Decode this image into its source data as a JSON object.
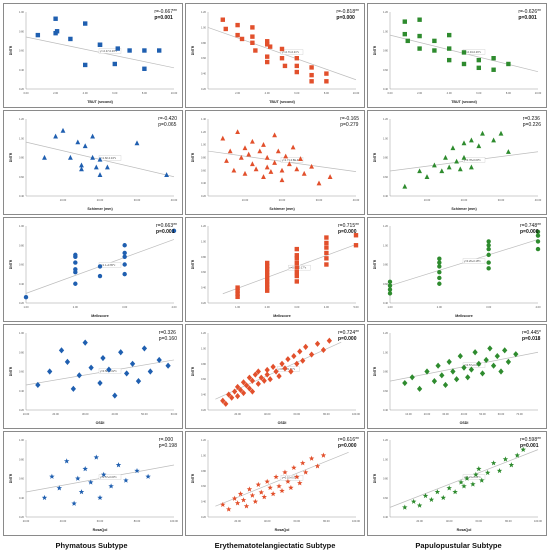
{
  "colors": {
    "phymatous": "#1f5fb0",
    "erythematotelangiectatic": "#e2502c",
    "papulopustular": "#2e8b2e",
    "trendline": "#bdbdbd"
  },
  "columns": [
    "Phymatous Subtype",
    "Erythematotelangiectatic Subtype",
    "Papulopustular Subtype"
  ],
  "chart_data": [
    {
      "type": "scatter",
      "row": 0,
      "col": 0,
      "marker": "square",
      "ylabel": "DNTR",
      "xlabel": "TBUT (second)",
      "r": "r=-0.667**",
      "p": "p=0.001",
      "eq": "y=-0.47-0.29*x",
      "xlim": [
        0,
        10
      ],
      "ylim": [
        0.2,
        1.0
      ],
      "xticks": [
        "0.00",
        "2.00",
        "4.00",
        "6.00",
        "8.00",
        "10.00"
      ],
      "yticks": [
        "0.20",
        "0.40",
        "0.60",
        "0.80",
        "1.00"
      ],
      "x": [
        0.8,
        2.0,
        2.0,
        2.1,
        3.0,
        4.0,
        4.0,
        5.0,
        5.0,
        6.0,
        6.2,
        7.0,
        8.0,
        8.0,
        9.0
      ],
      "y": [
        0.76,
        0.93,
        0.78,
        0.8,
        0.72,
        0.88,
        0.45,
        0.66,
        0.66,
        0.46,
        0.62,
        0.6,
        0.41,
        0.6,
        0.6
      ],
      "trend": [
        [
          0,
          0.74
        ],
        [
          10,
          0.42
        ]
      ]
    },
    {
      "type": "scatter",
      "row": 0,
      "col": 1,
      "marker": "square",
      "ylabel": "DNTR",
      "xlabel": "TBUT (second)",
      "r": "r=-0.818**",
      "p": "p=0.000",
      "eq": "y=-0.71-0.21*x",
      "xlim": [
        0,
        10
      ],
      "ylim": [
        0.2,
        1.2
      ],
      "xticks": [
        "2.00",
        "4.00",
        "6.00",
        "8.00",
        "10.00"
      ],
      "yticks": [
        "0.20",
        "0.40",
        "0.60",
        "0.80",
        "1.00",
        "1.20"
      ],
      "x": [
        1.0,
        1.2,
        2.0,
        2.0,
        2.3,
        3.0,
        3.0,
        3.0,
        3.2,
        4.0,
        4.0,
        4.0,
        4.0,
        4.2,
        5.0,
        5.0,
        5.2,
        6.0,
        6.0,
        6.0,
        7.0,
        7.0,
        7.0,
        8.0,
        8.0
      ],
      "y": [
        1.1,
        0.98,
        1.03,
        0.9,
        0.85,
        1.0,
        0.88,
        0.8,
        0.7,
        0.82,
        0.78,
        0.62,
        0.55,
        0.75,
        0.72,
        0.6,
        0.5,
        0.6,
        0.5,
        0.42,
        0.48,
        0.38,
        0.3,
        0.4,
        0.3
      ],
      "trend": [
        [
          0,
          1.0
        ],
        [
          10,
          0.32
        ]
      ]
    },
    {
      "type": "scatter",
      "row": 0,
      "col": 2,
      "marker": "square",
      "ylabel": "DNTR",
      "xlabel": "TBUT (second)",
      "r": "r=-0.626**",
      "p": "p=0.001",
      "eq": "y=-0.34-0.26*x",
      "xlim": [
        0,
        10
      ],
      "ylim": [
        0.4,
        1.2
      ],
      "xticks": [
        "0.00",
        "2.00",
        "4.00",
        "6.00",
        "8.00",
        "10.00"
      ],
      "yticks": [
        "0.40",
        "0.60",
        "0.80",
        "1.00",
        "1.20"
      ],
      "x": [
        1.0,
        1.0,
        1.2,
        2.0,
        2.0,
        2.0,
        3.0,
        3.0,
        4.0,
        4.0,
        4.0,
        5.0,
        5.0,
        6.0,
        6.0,
        7.0,
        7.0,
        8.0
      ],
      "y": [
        1.1,
        0.97,
        0.9,
        1.12,
        0.95,
        0.82,
        0.9,
        0.8,
        0.96,
        0.82,
        0.7,
        0.78,
        0.66,
        0.7,
        0.62,
        0.72,
        0.6,
        0.66
      ],
      "trend": [
        [
          0,
          0.96
        ],
        [
          10,
          0.58
        ]
      ]
    },
    {
      "type": "scatter",
      "row": 1,
      "col": 0,
      "marker": "triangle",
      "ylabel": "DNTR",
      "xlabel": "Schirmer (mm)",
      "r": "r=-0.420",
      "p": "p=0.065",
      "eq": "y=1.82-0.34*x",
      "xlim": [
        0,
        40
      ],
      "ylim": [
        0.4,
        1.2
      ],
      "xticks": [
        "10.00",
        "20.00",
        "30.00",
        "40.00"
      ],
      "yticks": [
        "0.40",
        "0.60",
        "0.80",
        "1.00",
        "1.20"
      ],
      "x": [
        5,
        8,
        10,
        12,
        14,
        15,
        15,
        16,
        18,
        18,
        19,
        20,
        20,
        22,
        30,
        38
      ],
      "y": [
        0.8,
        1.02,
        1.08,
        0.8,
        0.96,
        0.72,
        0.68,
        0.92,
        1.02,
        0.8,
        0.7,
        0.78,
        0.62,
        0.7,
        0.95,
        0.62
      ],
      "trend": [
        [
          0,
          0.96
        ],
        [
          40,
          0.6
        ]
      ]
    },
    {
      "type": "scatter",
      "row": 1,
      "col": 1,
      "marker": "triangle",
      "ylabel": "DNTR",
      "xlabel": "Schirmer (mm)",
      "r": "r=-0.165",
      "p": "p=0.279",
      "eq": "y=1.71-0.8E-4*x",
      "xlim": [
        0,
        40
      ],
      "ylim": [
        0.2,
        1.4
      ],
      "xticks": [
        "10.00",
        "20.00",
        "30.00",
        "40.00"
      ],
      "yticks": [
        "0.20",
        "0.40",
        "0.60",
        "0.80",
        "1.00",
        "1.20",
        "1.40"
      ],
      "x": [
        4,
        5,
        6,
        7,
        8,
        9,
        10,
        10,
        11,
        12,
        12,
        13,
        14,
        15,
        15,
        16,
        16,
        17,
        18,
        18,
        19,
        20,
        20,
        21,
        22,
        23,
        24,
        25,
        26,
        28,
        30,
        33
      ],
      "y": [
        1.1,
        0.75,
        0.9,
        0.6,
        1.2,
        0.8,
        0.95,
        0.55,
        0.85,
        1.05,
        0.7,
        0.62,
        0.9,
        1.0,
        0.5,
        0.8,
        0.65,
        0.58,
        1.15,
        0.72,
        0.9,
        0.6,
        0.45,
        0.82,
        0.7,
        0.96,
        0.62,
        0.78,
        0.55,
        0.66,
        0.4,
        0.5
      ],
      "trend": [
        [
          0,
          0.9
        ],
        [
          40,
          0.58
        ]
      ]
    },
    {
      "type": "scatter",
      "row": 1,
      "col": 2,
      "marker": "triangle",
      "ylabel": "DNTR",
      "xlabel": "Schirmer (mm)",
      "r": "r=0.236",
      "p": "p=0.226",
      "eq": "y=0.78+0.00*x",
      "xlim": [
        0,
        40
      ],
      "ylim": [
        0.4,
        1.2
      ],
      "xticks": [
        "10.00",
        "20.00",
        "30.00",
        "40.00"
      ],
      "yticks": [
        "0.40",
        "0.60",
        "0.80",
        "1.00",
        "1.20"
      ],
      "x": [
        4,
        8,
        10,
        12,
        14,
        15,
        16,
        17,
        18,
        19,
        20,
        20,
        22,
        22,
        24,
        25,
        28,
        30,
        32
      ],
      "y": [
        0.5,
        0.66,
        0.6,
        0.72,
        0.66,
        0.8,
        0.7,
        0.9,
        0.76,
        0.68,
        0.95,
        0.8,
        0.98,
        0.7,
        0.92,
        1.05,
        0.98,
        1.05,
        0.86
      ],
      "trend": [
        [
          0,
          0.66
        ],
        [
          40,
          0.86
        ]
      ]
    },
    {
      "type": "scatter",
      "row": 2,
      "col": 0,
      "marker": "circle",
      "ylabel": "DNTR",
      "xlabel": "Melkscore",
      "r": "r=0.663**",
      "p": "p=0.001",
      "eq": "y=1.1+0.65*x",
      "xlim": [
        1,
        4
      ],
      "ylim": [
        0.2,
        1.0
      ],
      "xticks": [
        "1.00",
        "2.00",
        "3.00",
        "4.00"
      ],
      "yticks": [
        "0.20",
        "0.40",
        "0.60",
        "0.80",
        "1.00"
      ],
      "x": [
        1.0,
        2.0,
        2.0,
        2.0,
        2.0,
        2.0,
        2.0,
        2.5,
        2.5,
        3.0,
        3.0,
        3.0,
        3.0,
        3.0,
        4.0
      ],
      "y": [
        0.26,
        0.4,
        0.52,
        0.55,
        0.62,
        0.68,
        0.7,
        0.48,
        0.58,
        0.5,
        0.6,
        0.68,
        0.72,
        0.8,
        0.95
      ],
      "trend": [
        [
          1,
          0.3
        ],
        [
          4,
          0.86
        ]
      ]
    },
    {
      "type": "scatter",
      "row": 2,
      "col": 1,
      "marker": "square",
      "ylabel": "DNTR",
      "xlabel": "Melkscore",
      "r": "r=0.715**",
      "p": "p=0.000",
      "eq": "y=0.43+0.17*x",
      "xlim": [
        0,
        5
      ],
      "ylim": [
        0.2,
        1.2
      ],
      "xticks": [
        "1.00",
        "2.00",
        "3.00",
        "4.00",
        "5.00"
      ],
      "yticks": [
        "0.20",
        "0.40",
        "0.60",
        "0.80",
        "1.00",
        "1.20"
      ],
      "x": [
        1,
        1,
        1,
        1,
        2,
        2,
        2,
        2,
        2,
        2,
        2,
        2,
        2,
        2,
        3,
        3,
        3,
        3,
        3,
        3,
        3,
        3,
        4,
        4,
        4,
        4,
        4,
        4,
        5,
        5
      ],
      "y": [
        0.28,
        0.32,
        0.36,
        0.4,
        0.36,
        0.4,
        0.44,
        0.48,
        0.52,
        0.56,
        0.6,
        0.64,
        0.68,
        0.72,
        0.48,
        0.55,
        0.6,
        0.66,
        0.72,
        0.78,
        0.82,
        0.9,
        0.7,
        0.78,
        0.85,
        0.92,
        0.98,
        1.05,
        0.95,
        1.08
      ],
      "trend": [
        [
          0.5,
          0.32
        ],
        [
          5,
          0.96
        ]
      ]
    },
    {
      "type": "scatter",
      "row": 2,
      "col": 2,
      "marker": "circle",
      "ylabel": "DNTR",
      "xlabel": "Melkscore",
      "r": "r=0.748**",
      "p": "p=0.000",
      "eq": "y=0.26+0.18*x",
      "xlim": [
        1,
        4
      ],
      "ylim": [
        0.4,
        1.2
      ],
      "xticks": [
        "1.00",
        "2.00",
        "3.00",
        "4.00"
      ],
      "yticks": [
        "0.40",
        "0.60",
        "0.80",
        "1.00",
        "1.20"
      ],
      "x": [
        1,
        1,
        1,
        1,
        2,
        2,
        2,
        2,
        2,
        2,
        3,
        3,
        3,
        3,
        3,
        3,
        4,
        4,
        4,
        4
      ],
      "y": [
        0.5,
        0.54,
        0.58,
        0.62,
        0.6,
        0.66,
        0.72,
        0.78,
        0.82,
        0.86,
        0.76,
        0.82,
        0.9,
        0.96,
        1.0,
        1.04,
        0.96,
        1.04,
        1.1,
        1.14
      ],
      "trend": [
        [
          1,
          0.58
        ],
        [
          4,
          1.06
        ]
      ]
    },
    {
      "type": "scatter",
      "row": 3,
      "col": 0,
      "marker": "diamond",
      "ylabel": "DNTR",
      "xlabel": "OSDI",
      "r": "r=0.326",
      "p": "p=0.160",
      "eq": "y=0.58+0.02*x",
      "xlim": [
        10,
        60
      ],
      "ylim": [
        0.2,
        1.0
      ],
      "xticks": [
        "10.00",
        "20.00",
        "30.00",
        "40.00",
        "50.00",
        "60.00"
      ],
      "yticks": [
        "0.20",
        "0.40",
        "0.60",
        "0.80",
        "1.00"
      ],
      "x": [
        14,
        18,
        22,
        24,
        26,
        28,
        30,
        32,
        35,
        36,
        38,
        40,
        42,
        44,
        46,
        48,
        50,
        52,
        55,
        58
      ],
      "y": [
        0.46,
        0.6,
        0.82,
        0.7,
        0.42,
        0.56,
        0.9,
        0.64,
        0.48,
        0.74,
        0.62,
        0.35,
        0.8,
        0.58,
        0.68,
        0.5,
        0.84,
        0.6,
        0.72,
        0.66
      ],
      "trend": [
        [
          10,
          0.46
        ],
        [
          60,
          0.72
        ]
      ]
    },
    {
      "type": "scatter",
      "row": 3,
      "col": 1,
      "marker": "diamond",
      "ylabel": "DNTR",
      "xlabel": "OSDI",
      "r": "r=0.724**",
      "p": "p=0.000",
      "eq": "y=0.15+0.01*x",
      "xlim": [
        0,
        100
      ],
      "ylim": [
        0.2,
        1.2
      ],
      "xticks": [
        "20.00",
        "40.00",
        "60.00",
        "80.00",
        "100.00"
      ],
      "yticks": [
        "0.20",
        "0.40",
        "0.60",
        "0.80",
        "1.00",
        "1.20"
      ],
      "x": [
        10,
        12,
        14,
        16,
        18,
        20,
        20,
        22,
        24,
        24,
        26,
        28,
        28,
        30,
        30,
        32,
        34,
        34,
        36,
        38,
        40,
        40,
        42,
        44,
        46,
        48,
        50,
        52,
        54,
        56,
        58,
        60,
        62,
        64,
        66,
        70,
        74,
        78,
        82
      ],
      "y": [
        0.32,
        0.28,
        0.4,
        0.36,
        0.44,
        0.38,
        0.5,
        0.46,
        0.42,
        0.56,
        0.52,
        0.48,
        0.62,
        0.58,
        0.44,
        0.66,
        0.54,
        0.7,
        0.62,
        0.58,
        0.72,
        0.66,
        0.6,
        0.76,
        0.7,
        0.64,
        0.8,
        0.74,
        0.86,
        0.7,
        0.9,
        0.8,
        0.96,
        0.84,
        1.02,
        0.92,
        1.06,
        0.98,
        1.1
      ],
      "trend": [
        [
          5,
          0.34
        ],
        [
          90,
          1.08
        ]
      ]
    },
    {
      "type": "scatter",
      "row": 3,
      "col": 2,
      "marker": "diamond",
      "ylabel": "DNTR",
      "xlabel": "OSDI",
      "r": "r=0.445*",
      "p": "p=0.018",
      "eq": "y=0.57+0.01*x",
      "xlim": [
        0,
        80
      ],
      "ylim": [
        0.4,
        1.2
      ],
      "xticks": [
        "10.00",
        "20.00",
        "30.00",
        "40.00",
        "50.00",
        "60.00",
        "70.00"
      ],
      "yticks": [
        "0.40",
        "0.60",
        "0.80",
        "1.00",
        "1.20"
      ],
      "x": [
        8,
        12,
        16,
        20,
        24,
        26,
        28,
        30,
        32,
        34,
        36,
        38,
        40,
        42,
        44,
        46,
        48,
        50,
        52,
        54,
        56,
        58,
        60,
        62,
        64,
        68
      ],
      "y": [
        0.68,
        0.74,
        0.62,
        0.8,
        0.7,
        0.86,
        0.76,
        0.66,
        0.9,
        0.8,
        0.72,
        0.96,
        0.84,
        0.74,
        0.82,
        1.0,
        0.88,
        0.78,
        0.92,
        1.04,
        0.86,
        0.96,
        0.8,
        1.02,
        0.9,
        0.98
      ],
      "trend": [
        [
          0,
          0.7
        ],
        [
          80,
          1.0
        ]
      ]
    },
    {
      "type": "scatter",
      "row": 4,
      "col": 0,
      "marker": "star",
      "ylabel": "DNTR",
      "xlabel": "RosaQol",
      "r": "r=.000",
      "p": "p=0.198",
      "eq": "y=0.57+0.00*x",
      "xlim": [
        20,
        100
      ],
      "ylim": [
        0.2,
        1.0
      ],
      "xticks": [
        "20.00",
        "40.00",
        "60.00",
        "80.00",
        "100.00"
      ],
      "yticks": [
        "0.20",
        "0.40",
        "0.60",
        "0.80",
        "1.00"
      ],
      "x": [
        30,
        34,
        38,
        42,
        46,
        48,
        50,
        52,
        55,
        58,
        60,
        62,
        66,
        70,
        74,
        80,
        86
      ],
      "y": [
        0.4,
        0.62,
        0.5,
        0.78,
        0.34,
        0.6,
        0.46,
        0.7,
        0.56,
        0.82,
        0.4,
        0.64,
        0.52,
        0.74,
        0.58,
        0.68,
        0.62
      ],
      "trend": [
        [
          20,
          0.46
        ],
        [
          100,
          0.74
        ]
      ]
    },
    {
      "type": "scatter",
      "row": 4,
      "col": 1,
      "marker": "star",
      "ylabel": "DNTR",
      "xlabel": "RosaQol",
      "r": "r=0.616**",
      "p": "p=0.000",
      "eq": "y=0.10+0.01*x",
      "xlim": [
        0,
        100
      ],
      "ylim": [
        0.2,
        1.2
      ],
      "xticks": [
        "20.00",
        "40.00",
        "60.00",
        "80.00",
        "100.00"
      ],
      "yticks": [
        "0.20",
        "0.40",
        "0.60",
        "0.80",
        "1.00",
        "1.20"
      ],
      "x": [
        10,
        14,
        18,
        20,
        22,
        24,
        26,
        28,
        30,
        32,
        34,
        36,
        38,
        40,
        42,
        44,
        46,
        48,
        50,
        52,
        54,
        56,
        58,
        60,
        62,
        64,
        66,
        70,
        74,
        78
      ],
      "y": [
        0.36,
        0.3,
        0.44,
        0.38,
        0.5,
        0.42,
        0.34,
        0.56,
        0.48,
        0.4,
        0.62,
        0.52,
        0.46,
        0.66,
        0.58,
        0.5,
        0.72,
        0.6,
        0.54,
        0.78,
        0.66,
        0.58,
        0.84,
        0.72,
        0.64,
        0.9,
        0.78,
        0.96,
        0.86,
        1.0
      ],
      "trend": [
        [
          5,
          0.34
        ],
        [
          95,
          1.04
        ]
      ]
    },
    {
      "type": "scatter",
      "row": 4,
      "col": 2,
      "marker": "star",
      "ylabel": "DNTR",
      "xlabel": "RosaQol",
      "r": "r=0.598**",
      "p": "p=0.001",
      "eq": "y=0.21+0.01*x",
      "xlim": [
        0,
        100
      ],
      "ylim": [
        0.4,
        1.2
      ],
      "xticks": [
        "20.00",
        "40.00",
        "60.00",
        "80.00",
        "100.00"
      ],
      "yticks": [
        "0.40",
        "0.60",
        "0.80",
        "1.00",
        "1.20"
      ],
      "x": [
        10,
        16,
        20,
        24,
        28,
        32,
        36,
        40,
        44,
        48,
        50,
        52,
        56,
        58,
        60,
        62,
        66,
        70,
        74,
        78,
        82,
        86,
        90
      ],
      "y": [
        0.5,
        0.56,
        0.52,
        0.62,
        0.58,
        0.66,
        0.6,
        0.7,
        0.66,
        0.76,
        0.72,
        0.8,
        0.74,
        0.84,
        0.9,
        0.78,
        0.86,
        0.96,
        0.88,
        1.0,
        0.94,
        1.04,
        1.1
      ],
      "trend": [
        [
          0,
          0.5
        ],
        [
          100,
          1.1
        ]
      ]
    }
  ]
}
